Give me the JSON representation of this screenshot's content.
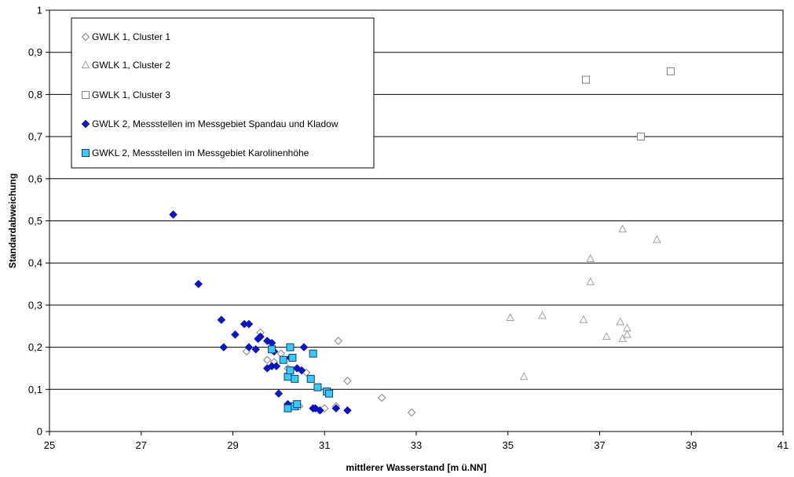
{
  "chart_data": {
    "type": "scatter",
    "title": "",
    "xlabel": "mittlerer Wasserstand [m ü.NN]",
    "ylabel": "Standardabweichung",
    "xlim": [
      25,
      41
    ],
    "ylim": [
      0,
      1
    ],
    "x_ticks": [
      25,
      27,
      29,
      31,
      33,
      35,
      37,
      39,
      41
    ],
    "x_tick_labels": [
      "25",
      "27",
      "29",
      "31",
      "33",
      "35",
      "37",
      "39",
      "41"
    ],
    "y_ticks": [
      0,
      0.1,
      0.2,
      0.3,
      0.4,
      0.5,
      0.6,
      0.7,
      0.8,
      0.9,
      1
    ],
    "y_tick_labels": [
      "0",
      "0,1",
      "0,2",
      "0,3",
      "0,4",
      "0,5",
      "0,6",
      "0,7",
      "0,8",
      "0,9",
      "1"
    ],
    "grid": "horizontal",
    "legend_position": "top-left",
    "series": [
      {
        "name": "GWLK 1, Cluster 1",
        "marker": "diamond-open",
        "color": "#808080",
        "points": [
          [
            29.3,
            0.19
          ],
          [
            29.6,
            0.235
          ],
          [
            29.75,
            0.17
          ],
          [
            29.9,
            0.165
          ],
          [
            30.05,
            0.185
          ],
          [
            30.3,
            0.175
          ],
          [
            30.45,
            0.06
          ],
          [
            30.6,
            0.14
          ],
          [
            31.0,
            0.055
          ],
          [
            31.3,
            0.215
          ],
          [
            31.5,
            0.12
          ],
          [
            32.25,
            0.08
          ],
          [
            32.9,
            0.045
          ],
          [
            31.25,
            0.06
          ],
          [
            30.2,
            0.15
          ]
        ]
      },
      {
        "name": "GWLK 1, Cluster 2",
        "marker": "triangle-open",
        "color": "#a0a0a0",
        "points": [
          [
            35.05,
            0.27
          ],
          [
            35.35,
            0.13
          ],
          [
            35.75,
            0.275
          ],
          [
            36.65,
            0.265
          ],
          [
            36.8,
            0.41
          ],
          [
            36.8,
            0.355
          ],
          [
            37.15,
            0.225
          ],
          [
            37.45,
            0.26
          ],
          [
            37.5,
            0.22
          ],
          [
            37.5,
            0.48
          ],
          [
            37.6,
            0.245
          ],
          [
            37.6,
            0.23
          ],
          [
            38.25,
            0.455
          ]
        ]
      },
      {
        "name": "GWLK 1, Cluster 3",
        "marker": "square-open",
        "color": "#808080",
        "points": [
          [
            36.7,
            0.835
          ],
          [
            37.9,
            0.7
          ],
          [
            38.55,
            0.855
          ]
        ]
      },
      {
        "name": "GWLK 2, Messstellen im Messgebiet Spandau und Kladow",
        "marker": "diamond-filled",
        "color": "#0a14c8",
        "points": [
          [
            27.7,
            0.515
          ],
          [
            28.25,
            0.35
          ],
          [
            28.75,
            0.265
          ],
          [
            28.8,
            0.2
          ],
          [
            29.05,
            0.23
          ],
          [
            29.25,
            0.255
          ],
          [
            29.35,
            0.255
          ],
          [
            29.35,
            0.2
          ],
          [
            29.5,
            0.195
          ],
          [
            29.55,
            0.22
          ],
          [
            29.6,
            0.225
          ],
          [
            29.75,
            0.215
          ],
          [
            29.75,
            0.15
          ],
          [
            29.85,
            0.21
          ],
          [
            29.85,
            0.155
          ],
          [
            29.9,
            0.19
          ],
          [
            29.95,
            0.155
          ],
          [
            30.0,
            0.09
          ],
          [
            30.2,
            0.065
          ],
          [
            30.25,
            0.175
          ],
          [
            30.4,
            0.15
          ],
          [
            30.5,
            0.145
          ],
          [
            30.55,
            0.2
          ],
          [
            30.75,
            0.055
          ],
          [
            30.8,
            0.055
          ],
          [
            30.9,
            0.05
          ],
          [
            31.25,
            0.055
          ],
          [
            31.5,
            0.05
          ]
        ]
      },
      {
        "name": "GWKL 2, Messstellen im Messgebiet Karolinenhöhe",
        "marker": "square-filled",
        "color": "#33ccff",
        "points": [
          [
            29.85,
            0.195
          ],
          [
            30.1,
            0.17
          ],
          [
            30.2,
            0.055
          ],
          [
            30.2,
            0.13
          ],
          [
            30.25,
            0.145
          ],
          [
            30.25,
            0.2
          ],
          [
            30.3,
            0.175
          ],
          [
            30.35,
            0.06
          ],
          [
            30.35,
            0.125
          ],
          [
            30.4,
            0.065
          ],
          [
            30.7,
            0.125
          ],
          [
            30.75,
            0.185
          ],
          [
            30.85,
            0.105
          ],
          [
            31.05,
            0.095
          ],
          [
            31.1,
            0.09
          ]
        ]
      }
    ]
  }
}
